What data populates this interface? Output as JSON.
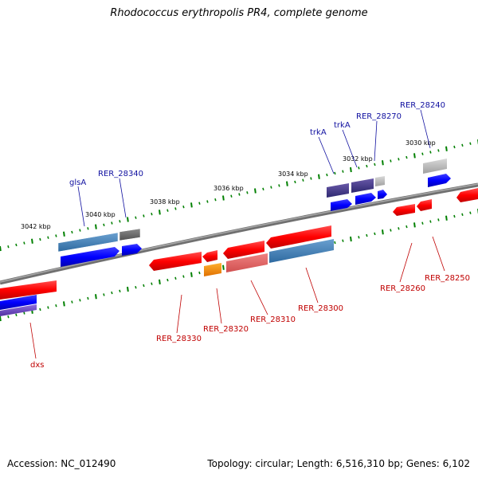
{
  "title": "Rhodococcus erythropolis PR4, complete genome",
  "accession": "Accession: NC_012490",
  "summary": "Topology: circular; Length: 6,516,310 bp; Genes: 6,102",
  "tick_labels": [
    "3042 kbp",
    "3040 kbp",
    "3038 kbp",
    "3036 kbp",
    "3034 kbp",
    "3032 kbp",
    "3030 kbp"
  ],
  "gene_labels_top": [
    "glsA",
    "RER_28340",
    "trkA",
    "trkA",
    "RER_28270",
    "RER_28240"
  ],
  "gene_labels_bottom": [
    "dxs",
    "RER_28330",
    "RER_28320",
    "RER_28310",
    "RER_28300",
    "RER_28260",
    "RER_28250"
  ],
  "colors": {
    "backbone": "#808080",
    "forward_cds": "#ff0000",
    "forward_gene": "#0000ff",
    "reverse_cds": "#e00000",
    "tick": "#008000",
    "label_top": "#1010a0",
    "label_bottom": "#c00000"
  }
}
